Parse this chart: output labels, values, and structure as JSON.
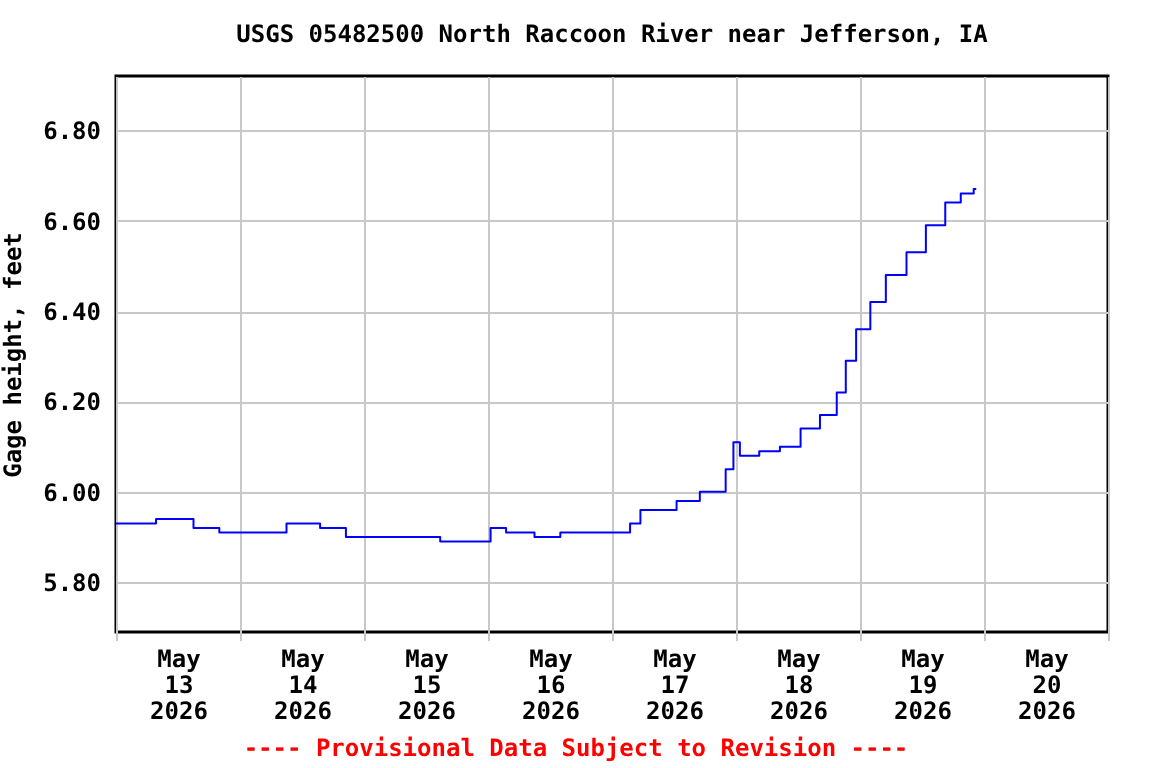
{
  "chart_data": {
    "type": "step",
    "title": "USGS 05482500 North Raccoon River near Jefferson, IA",
    "ylabel": "Gage height, feet",
    "annotations": [
      "---- Provisional Data Subject to Revision ----"
    ],
    "grid": true,
    "marker": "none",
    "line_style": "solid",
    "xlim": [
      "2026-05-13T00:00",
      "2026-05-21T00:00"
    ],
    "xticks": [
      {
        "value": "2026-05-13T00:00",
        "label": null
      },
      {
        "value": "2026-05-14T00:00",
        "label": null
      },
      {
        "value": "2026-05-15T00:00",
        "label": null
      },
      {
        "value": "2026-05-16T00:00",
        "label": null
      },
      {
        "value": "2026-05-17T00:00",
        "label": null
      },
      {
        "value": "2026-05-18T00:00",
        "label": null
      },
      {
        "value": "2026-05-19T00:00",
        "label": null
      },
      {
        "value": "2026-05-20T00:00",
        "label": null
      },
      {
        "value": "2026-05-21T00:00",
        "label": null
      },
      {
        "value": "2026-05-13T12:00",
        "label": "May 13 2026"
      },
      {
        "value": "2026-05-14T12:00",
        "label": "May 14 2026"
      },
      {
        "value": "2026-05-15T12:00",
        "label": "May 15 2026"
      },
      {
        "value": "2026-05-16T12:00",
        "label": "May 16 2026"
      },
      {
        "value": "2026-05-17T12:00",
        "label": "May 17 2026"
      },
      {
        "value": "2026-05-18T12:00",
        "label": "May 18 2026"
      },
      {
        "value": "2026-05-19T12:00",
        "label": "May 19 2026"
      },
      {
        "value": "2026-05-20T12:00",
        "label": "May 20 2026"
      }
    ],
    "ylim": [
      5.69,
      6.92
    ],
    "yticks": [
      {
        "value": 5.8,
        "label": "5.80"
      },
      {
        "value": 6.0,
        "label": "6.00"
      },
      {
        "value": 6.2,
        "label": "6.20"
      },
      {
        "value": 6.4,
        "label": "6.40"
      },
      {
        "value": 6.6,
        "label": "6.60"
      },
      {
        "value": 6.8,
        "label": "6.80"
      }
    ],
    "series": [
      {
        "color": "#0000ff",
        "x": [
          "2026-05-13T00:00",
          "2026-05-13T07:45",
          "2026-05-13T15:00",
          "2026-05-13T20:00",
          "2026-05-14T09:00",
          "2026-05-14T15:30",
          "2026-05-14T20:30",
          "2026-05-15T14:45",
          "2026-05-16T00:30",
          "2026-05-16T03:30",
          "2026-05-16T09:00",
          "2026-05-16T14:00",
          "2026-05-17T03:30",
          "2026-05-17T05:30",
          "2026-05-17T12:30",
          "2026-05-17T17:00",
          "2026-05-17T22:00",
          "2026-05-17T23:30",
          "2026-05-18T00:45",
          "2026-05-18T04:30",
          "2026-05-18T08:30",
          "2026-05-18T12:30",
          "2026-05-18T16:15",
          "2026-05-18T19:30",
          "2026-05-18T21:15",
          "2026-05-18T23:15",
          "2026-05-19T02:00",
          "2026-05-19T05:00",
          "2026-05-19T09:00",
          "2026-05-19T12:45",
          "2026-05-19T16:30",
          "2026-05-19T19:30",
          "2026-05-19T22:00",
          "2026-05-19T22:30"
        ],
        "values": [
          5.93,
          5.94,
          5.92,
          5.91,
          5.93,
          5.92,
          5.9,
          5.89,
          5.92,
          5.91,
          5.9,
          5.91,
          5.93,
          5.96,
          5.98,
          6.0,
          6.05,
          6.11,
          6.08,
          6.09,
          6.1,
          6.14,
          6.17,
          6.22,
          6.29,
          6.36,
          6.42,
          6.48,
          6.53,
          6.59,
          6.64,
          6.66,
          6.67,
          6.67
        ]
      }
    ]
  }
}
